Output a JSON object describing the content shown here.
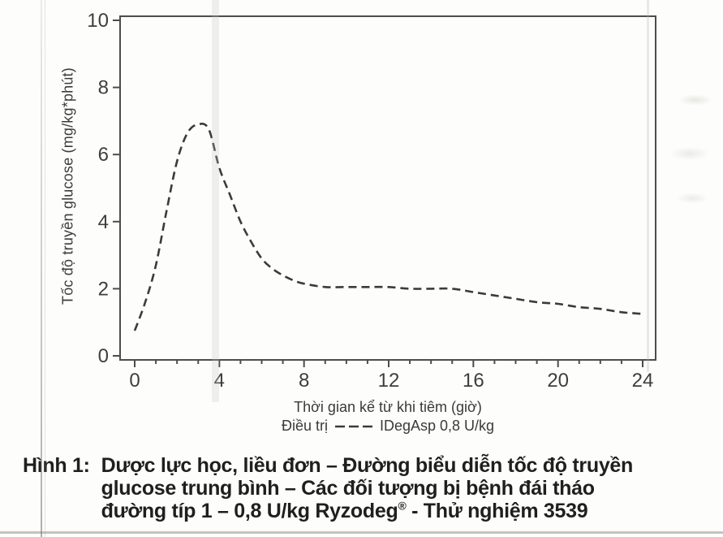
{
  "figure": {
    "y_axis_label": "Tốc độ truyền glucose (mg/kg*phút)",
    "x_axis_label": "Thời gian kể từ khi tiêm (giờ)",
    "legend_prefix": "Điều trị",
    "legend_label": "IDegAsp 0,8 U/kg",
    "caption_label": "Hình 1:",
    "caption_line1": "Dược lực học, liều đơn – Đường biểu diễn tốc độ truyền",
    "caption_line2": "glucose trung bình – Các đối tượng bị bệnh đái tháo",
    "caption_line3_pre": "đường típ 1 – 0,8 U/kg Ryzodeg",
    "caption_line3_sup": "®",
    "caption_line3_post": " - Thử nghiệm 3539"
  },
  "chart_data": {
    "type": "line",
    "title": "",
    "xlabel": "Thời gian kể từ khi tiêm (giờ)",
    "ylabel": "Tốc độ truyền glucose (mg/kg*phút)",
    "xlim": [
      0,
      24
    ],
    "ylim": [
      0,
      10
    ],
    "xticks": [
      0,
      4,
      8,
      12,
      16,
      20,
      24
    ],
    "yticks": [
      0,
      2,
      4,
      6,
      8,
      10
    ],
    "x_minor_step": 1,
    "grid": false,
    "frame": true,
    "legend_position": "bottom-center",
    "axis_color": "#4d4d4d",
    "series": [
      {
        "name": "IDegAsp 0,8 U/kg",
        "style": "dashed",
        "color": "#3b3b3b",
        "x": [
          0,
          0.5,
          1,
          1.5,
          2,
          2.5,
          3,
          3.5,
          4,
          4.5,
          5,
          5.5,
          6,
          6.5,
          7,
          7.5,
          8,
          9,
          10,
          11,
          12,
          13,
          14,
          15,
          16,
          17,
          18,
          19,
          20,
          21,
          22,
          23,
          24
        ],
        "y": [
          0.75,
          1.6,
          2.7,
          4.3,
          5.8,
          6.65,
          6.9,
          6.75,
          5.6,
          4.8,
          4.0,
          3.4,
          2.9,
          2.6,
          2.4,
          2.25,
          2.15,
          2.05,
          2.05,
          2.05,
          2.05,
          2.0,
          2.0,
          2.0,
          1.9,
          1.8,
          1.7,
          1.6,
          1.55,
          1.45,
          1.4,
          1.3,
          1.25
        ]
      }
    ]
  }
}
